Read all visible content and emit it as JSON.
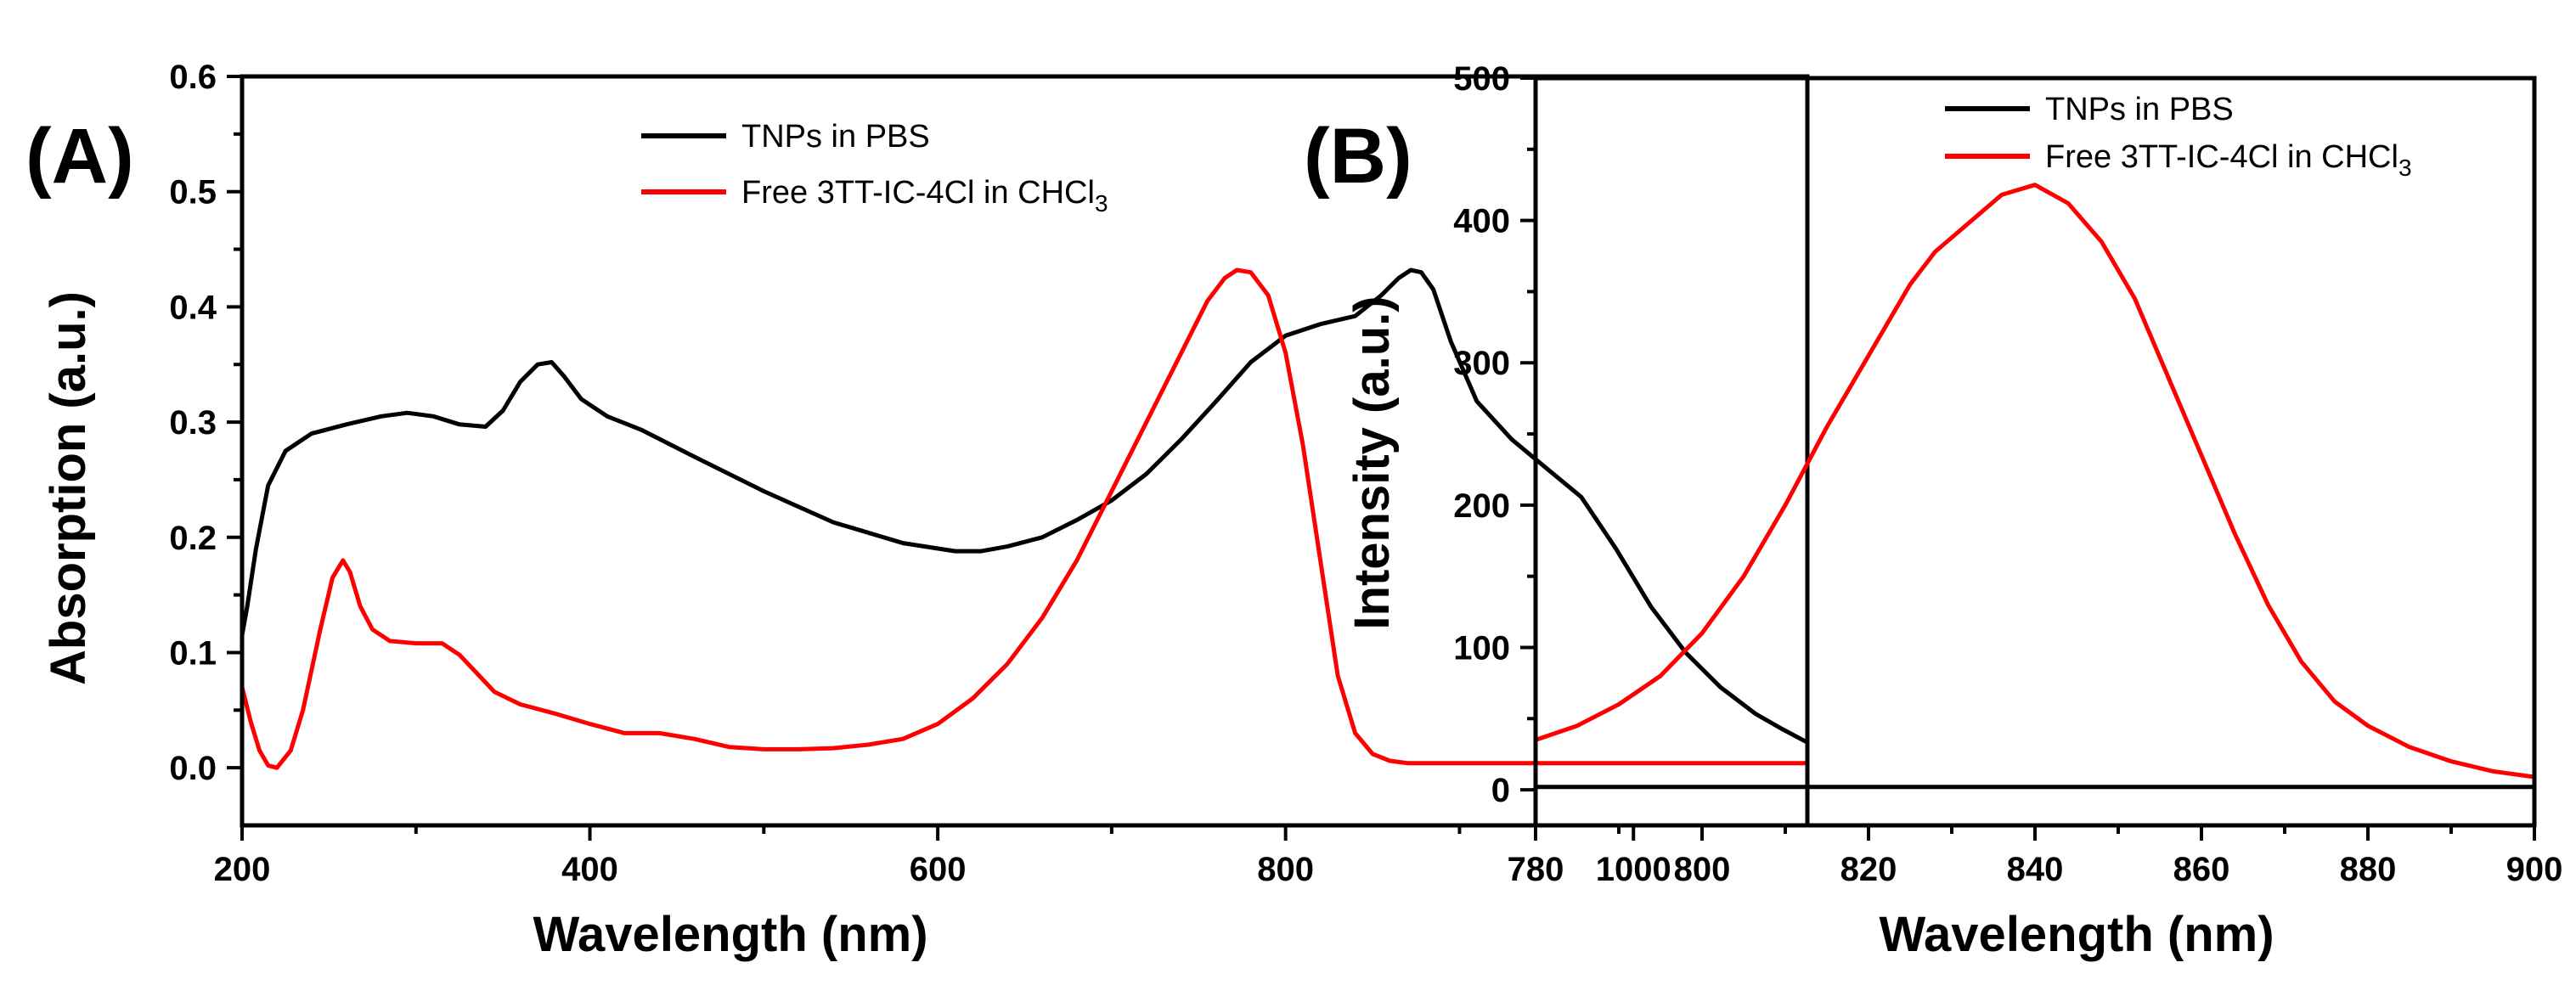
{
  "colors": {
    "series_1": "#000000",
    "series_2": "#ff0000",
    "axis": "#000000"
  },
  "chart_data": [
    {
      "panel": "(A)",
      "type": "line",
      "xlabel": "Wavelength (nm)",
      "ylabel": "Absorption (a.u.)",
      "xlim": [
        200,
        1100
      ],
      "ylim": [
        -0.05,
        0.6
      ],
      "xticks": [
        200,
        400,
        600,
        800,
        1000
      ],
      "yticks": [
        0.0,
        0.1,
        0.2,
        0.3,
        0.4,
        0.5,
        0.6
      ],
      "xtick_labels": [
        "200",
        "400",
        "600",
        "800",
        "1000"
      ],
      "ytick_labels": [
        "0.0",
        "0.1",
        "0.2",
        "0.3",
        "0.4",
        "0.5",
        "0.6"
      ],
      "legend_position": "top-right",
      "legend": [
        {
          "text": "TNPs in PBS",
          "subscript": ""
        },
        {
          "text": "Free 3TT-IC-4Cl in CHCl",
          "subscript": "3"
        }
      ],
      "series": [
        {
          "name": "TNPs in PBS",
          "x": [
            200,
            203,
            208,
            215,
            225,
            240,
            260,
            280,
            295,
            310,
            325,
            340,
            350,
            360,
            370,
            378,
            385,
            395,
            410,
            430,
            460,
            500,
            540,
            580,
            610,
            625,
            640,
            660,
            680,
            700,
            720,
            740,
            760,
            780,
            800,
            820,
            840,
            855,
            865,
            872,
            878,
            885,
            895,
            910,
            930,
            950,
            970,
            990,
            1010,
            1030,
            1050,
            1070,
            1085,
            1100
          ],
          "y": [
            0.115,
            0.14,
            0.19,
            0.245,
            0.275,
            0.29,
            0.298,
            0.305,
            0.308,
            0.305,
            0.298,
            0.296,
            0.31,
            0.335,
            0.35,
            0.352,
            0.34,
            0.32,
            0.305,
            0.293,
            0.27,
            0.24,
            0.213,
            0.195,
            0.188,
            0.188,
            0.192,
            0.2,
            0.215,
            0.232,
            0.255,
            0.285,
            0.318,
            0.352,
            0.375,
            0.385,
            0.392,
            0.41,
            0.425,
            0.432,
            0.43,
            0.415,
            0.37,
            0.318,
            0.285,
            0.26,
            0.235,
            0.19,
            0.14,
            0.1,
            0.07,
            0.047,
            0.034,
            0.022
          ]
        },
        {
          "name": "Free 3TT-IC-4Cl in CHCl3",
          "x": [
            200,
            205,
            210,
            215,
            220,
            228,
            235,
            245,
            252,
            258,
            262,
            268,
            275,
            285,
            300,
            315,
            325,
            335,
            345,
            360,
            380,
            400,
            420,
            440,
            460,
            480,
            500,
            520,
            540,
            560,
            580,
            600,
            620,
            640,
            660,
            680,
            700,
            720,
            740,
            755,
            765,
            772,
            780,
            790,
            800,
            810,
            820,
            830,
            840,
            850,
            860,
            870,
            880,
            900,
            950,
            1000,
            1050,
            1100
          ],
          "y": [
            0.07,
            0.04,
            0.015,
            0.002,
            0.0,
            0.015,
            0.05,
            0.12,
            0.165,
            0.18,
            0.17,
            0.14,
            0.12,
            0.11,
            0.108,
            0.108,
            0.098,
            0.082,
            0.066,
            0.055,
            0.047,
            0.038,
            0.03,
            0.03,
            0.025,
            0.018,
            0.016,
            0.016,
            0.017,
            0.02,
            0.025,
            0.038,
            0.06,
            0.09,
            0.13,
            0.18,
            0.24,
            0.3,
            0.36,
            0.405,
            0.425,
            0.432,
            0.43,
            0.41,
            0.36,
            0.28,
            0.18,
            0.08,
            0.03,
            0.012,
            0.006,
            0.004,
            0.004,
            0.004,
            0.004,
            0.004,
            0.004,
            0.004
          ]
        }
      ]
    },
    {
      "panel": "(B)",
      "type": "line",
      "xlabel": "Wavelength (nm)",
      "ylabel": "Intensity (a.u.)",
      "xlim": [
        780,
        900
      ],
      "ylim": [
        -25,
        500
      ],
      "xticks": [
        780,
        800,
        820,
        840,
        860,
        880,
        900
      ],
      "yticks": [
        0,
        100,
        200,
        300,
        400,
        500
      ],
      "xtick_labels": [
        "780",
        "800",
        "820",
        "840",
        "860",
        "880",
        "900"
      ],
      "ytick_labels": [
        "0",
        "100",
        "200",
        "300",
        "400",
        "500"
      ],
      "legend_position": "top-right",
      "legend": [
        {
          "text": "TNPs in PBS",
          "subscript": ""
        },
        {
          "text": "Free 3TT-IC-4Cl in CHCl",
          "subscript": "3"
        }
      ],
      "series": [
        {
          "name": "TNPs in PBS",
          "x": [
            780,
            800,
            820,
            840,
            860,
            880,
            900
          ],
          "y": [
            2,
            2,
            2,
            2,
            2,
            2,
            2
          ]
        },
        {
          "name": "Free 3TT-IC-4Cl in CHCl3",
          "x": [
            780,
            785,
            790,
            795,
            800,
            805,
            810,
            815,
            820,
            825,
            828,
            832,
            836,
            840,
            844,
            848,
            852,
            856,
            860,
            864,
            868,
            872,
            876,
            880,
            885,
            890,
            895,
            900
          ],
          "y": [
            35,
            45,
            60,
            80,
            110,
            150,
            200,
            255,
            305,
            355,
            378,
            398,
            418,
            425,
            412,
            385,
            345,
            290,
            235,
            180,
            130,
            90,
            62,
            45,
            30,
            20,
            13,
            9
          ]
        }
      ]
    }
  ]
}
